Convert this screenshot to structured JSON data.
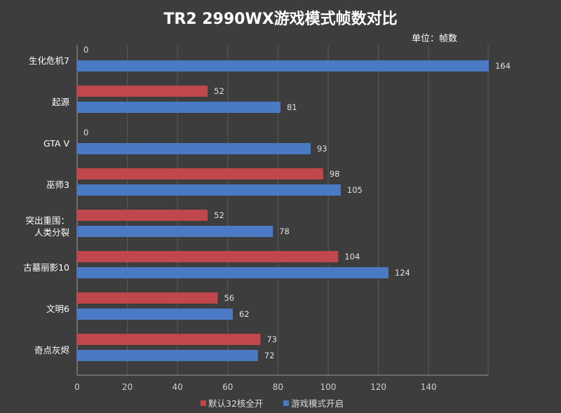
{
  "colors": {
    "background": "#3d3d3d",
    "series_default": "#c0474b",
    "series_game": "#4a7ac4",
    "grid": "#5a5a5a",
    "axis": "#9a9a9a"
  },
  "chart_data": {
    "type": "bar",
    "orientation": "horizontal",
    "title": "TR2 2990WX游戏模式帧数对比",
    "unit_label": "单位：帧数",
    "categories": [
      [
        "生化危机7"
      ],
      [
        "起源"
      ],
      [
        "GTA V"
      ],
      [
        "巫师3"
      ],
      [
        "突出重围：",
        "人类分裂"
      ],
      [
        "古墓丽影10"
      ],
      [
        "文明6"
      ],
      [
        "奇点灰烬"
      ]
    ],
    "series": [
      {
        "name": "默认32核全开",
        "values": [
          0,
          52,
          0,
          98,
          52,
          104,
          56,
          73
        ]
      },
      {
        "name": "游戏模式开启",
        "values": [
          164,
          81,
          93,
          105,
          78,
          124,
          62,
          72
        ]
      }
    ],
    "xlim": [
      0,
      164
    ],
    "xticks": [
      0,
      20,
      40,
      60,
      80,
      100,
      120,
      140
    ],
    "grid": true,
    "legend_position": "bottom"
  }
}
